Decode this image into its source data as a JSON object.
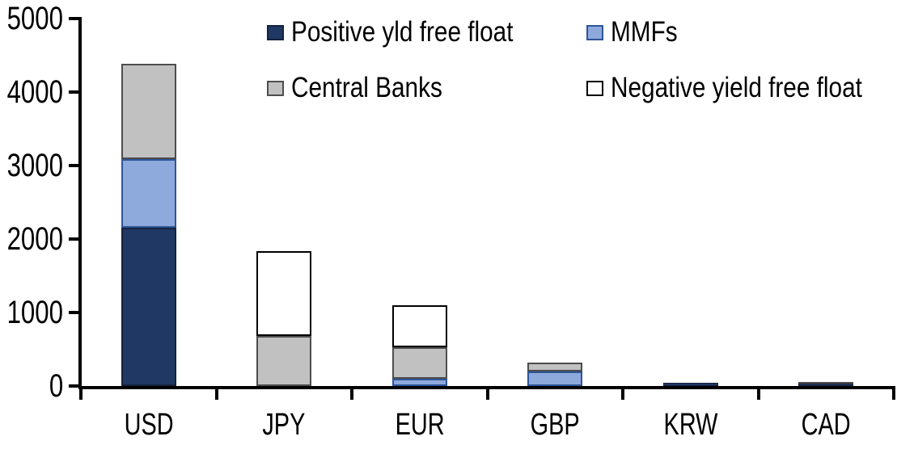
{
  "chart_data": {
    "type": "bar",
    "stacked": true,
    "title": "",
    "xlabel": "",
    "ylabel": "",
    "categories": [
      "USD",
      "JPY",
      "EUR",
      "GBP",
      "KRW",
      "CAD"
    ],
    "series": [
      {
        "name": "Positive yld free float",
        "color": "#1F3864",
        "border_color": "#15223E",
        "values": [
          2150,
          0,
          0,
          0,
          40,
          30
        ]
      },
      {
        "name": "MMFs",
        "color": "#8EA9DB",
        "border_color": "#2E5597",
        "values": [
          940,
          0,
          100,
          200,
          0,
          0
        ]
      },
      {
        "name": "Central Banks",
        "color": "#C1C1C1",
        "border_color": "#4D4D4D",
        "values": [
          1300,
          680,
          430,
          120,
          0,
          30
        ]
      },
      {
        "name": "Negative yield free float",
        "color": "#FFFFFF",
        "border_color": "#000000",
        "values": [
          0,
          1160,
          570,
          0,
          0,
          0
        ]
      }
    ],
    "totals_by_category": [
      4390,
      1840,
      1100,
      320,
      40,
      60
    ],
    "ylim": [
      0,
      5000
    ],
    "ytick_step": 1000,
    "ytick_labels": [
      "0",
      "1000",
      "2000",
      "3000",
      "4000",
      "5000"
    ],
    "grid": false,
    "legend_position": "top",
    "legend_rows": [
      [
        "Positive yld free float",
        "MMFs"
      ],
      [
        "Central Banks",
        "Negative yield free float"
      ]
    ],
    "axis_color": "#000000",
    "background_color": "#FFFFFF"
  }
}
